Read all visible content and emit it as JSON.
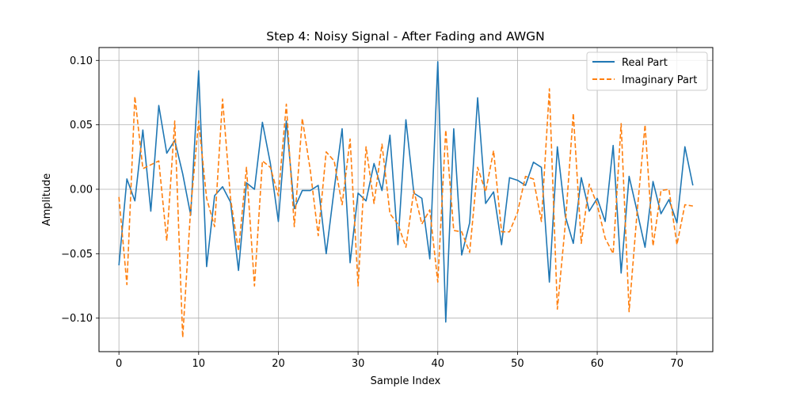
{
  "chart_data": {
    "type": "line",
    "title": "Step 4: Noisy Signal - After Fading and AWGN",
    "xlabel": "Sample Index",
    "ylabel": "Amplitude",
    "xlim": [
      -2.5,
      74.5
    ],
    "ylim": [
      -0.126,
      0.11
    ],
    "xticks": [
      0,
      10,
      20,
      30,
      40,
      50,
      60,
      70
    ],
    "yticks": [
      -0.1,
      -0.05,
      0.0,
      0.05,
      0.1
    ],
    "ytick_labels": [
      "−0.10",
      "−0.05",
      "0.00",
      "0.05",
      "0.10"
    ],
    "grid": true,
    "legend_position": "upper right",
    "series": [
      {
        "name": "Real Part",
        "color": "#1f77b4",
        "style": "solid",
        "values": [
          -0.059,
          0.008,
          -0.009,
          0.046,
          -0.017,
          0.065,
          0.028,
          0.038,
          0.012,
          -0.02,
          0.092,
          -0.06,
          -0.005,
          0.002,
          -0.01,
          -0.063,
          0.005,
          0.0,
          0.052,
          0.02,
          -0.025,
          0.053,
          -0.015,
          -0.001,
          -0.001,
          0.003,
          -0.05,
          0.0,
          0.047,
          -0.057,
          -0.003,
          -0.009,
          0.02,
          -0.001,
          0.042,
          -0.043,
          0.054,
          -0.003,
          -0.007,
          -0.054,
          0.099,
          -0.103,
          0.047,
          -0.051,
          -0.026,
          0.071,
          -0.011,
          -0.002,
          -0.043,
          0.009,
          0.007,
          0.003,
          0.021,
          0.017,
          -0.072,
          0.033,
          -0.021,
          -0.042,
          0.009,
          -0.017,
          -0.007,
          -0.025,
          0.034,
          -0.065,
          0.01,
          -0.017,
          -0.045,
          0.006,
          -0.019,
          -0.008,
          -0.026,
          0.033,
          0.003
        ]
      },
      {
        "name": "Imaginary Part",
        "color": "#ff7f0e",
        "style": "dashed",
        "values": [
          -0.006,
          -0.074,
          0.072,
          0.016,
          0.019,
          0.022,
          -0.04,
          0.053,
          -0.115,
          -0.015,
          0.053,
          -0.007,
          -0.029,
          0.07,
          -0.007,
          -0.048,
          0.017,
          -0.075,
          0.022,
          0.017,
          -0.005,
          0.066,
          -0.029,
          0.055,
          0.015,
          -0.036,
          0.029,
          0.022,
          -0.012,
          0.039,
          -0.075,
          0.033,
          -0.011,
          0.035,
          -0.019,
          -0.027,
          -0.045,
          -0.001,
          -0.027,
          -0.016,
          -0.072,
          0.046,
          -0.032,
          -0.033,
          -0.049,
          0.017,
          -0.002,
          0.03,
          -0.033,
          -0.033,
          -0.018,
          0.01,
          0.008,
          -0.025,
          0.078,
          -0.093,
          -0.027,
          0.059,
          -0.042,
          0.004,
          -0.012,
          -0.038,
          -0.05,
          0.051,
          -0.095,
          -0.018,
          0.05,
          -0.044,
          -0.001,
          0.0,
          -0.043,
          -0.012,
          -0.013
        ]
      }
    ]
  }
}
